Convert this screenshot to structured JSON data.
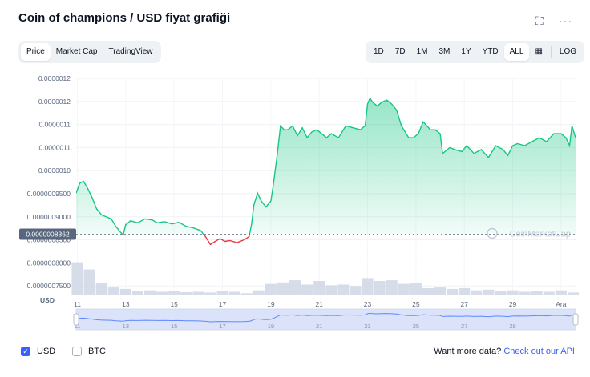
{
  "header": {
    "title": "Coin of champions / USD fiyat grafiği",
    "fullscreen_icon": "expand-icon",
    "more_icon": "more-icon",
    "fullscreen_glyph": "⛶",
    "more_glyph": "···"
  },
  "view_tabs": [
    {
      "label": "Price",
      "active": true
    },
    {
      "label": "Market Cap",
      "active": false
    },
    {
      "label": "TradingView",
      "active": false
    }
  ],
  "range_tabs": [
    {
      "label": "1D",
      "active": false
    },
    {
      "label": "7D",
      "active": false
    },
    {
      "label": "1M",
      "active": false
    },
    {
      "label": "3M",
      "active": false
    },
    {
      "label": "1Y",
      "active": false
    },
    {
      "label": "YTD",
      "active": false
    },
    {
      "label": "ALL",
      "active": true
    }
  ],
  "calendar_icon": "calendar-icon",
  "calendar_glyph": "▦",
  "log_label": "LOG",
  "watermark": "CoinMarketCap",
  "volume_axis_label": "USD",
  "colors": {
    "up": "#16c784",
    "down": "#ea3943",
    "volume": "#cfd6e4",
    "navigator_line": "#6188ff",
    "navigator_fill": "#dbe3fb",
    "accent": "#3861fb"
  },
  "chart_data": {
    "type": "line",
    "y_tick_labels": [
      "0.0000012",
      "0.0000012",
      "0.0000011",
      "0.0000011",
      "0.0000010",
      "0.0000009500",
      "0.0000009000",
      "0.0000008500",
      "0.0000008000",
      "0.0000007500"
    ],
    "ylim": [
      7.4e-07,
      1.23e-06
    ],
    "x_tick_labels": [
      "11",
      "13",
      "15",
      "17",
      "19",
      "21",
      "23",
      "25",
      "27",
      "29",
      "Ara"
    ],
    "x_tick_days": [
      11,
      13,
      15,
      17,
      19,
      21,
      23,
      25,
      27,
      29,
      31
    ],
    "x_range": [
      10.95,
      31.6
    ],
    "reference_price": 8.362e-07,
    "reference_label": "0.0000008362",
    "price_series": {
      "day": [
        10.95,
        11.1,
        11.25,
        11.4,
        11.6,
        11.8,
        12.0,
        12.2,
        12.4,
        12.6,
        12.8,
        12.9,
        13.0,
        13.2,
        13.5,
        13.8,
        14.1,
        14.3,
        14.6,
        14.9,
        15.2,
        15.5,
        15.8,
        16.1,
        16.3,
        16.5,
        16.7,
        16.9,
        17.1,
        17.3,
        17.6,
        17.9,
        18.1,
        18.2,
        18.3,
        18.45,
        18.6,
        18.8,
        19.0,
        19.1,
        19.25,
        19.4,
        19.55,
        19.7,
        19.9,
        20.1,
        20.3,
        20.5,
        20.7,
        20.9,
        21.1,
        21.3,
        21.5,
        21.8,
        22.1,
        22.4,
        22.7,
        22.9,
        23.0,
        23.1,
        23.2,
        23.4,
        23.6,
        23.8,
        24.0,
        24.2,
        24.4,
        24.7,
        24.9,
        25.1,
        25.3,
        25.6,
        25.8,
        26.0,
        26.1,
        26.2,
        26.4,
        26.6,
        26.9,
        27.1,
        27.4,
        27.7,
        28.0,
        28.3,
        28.6,
        28.8,
        29.0,
        29.2,
        29.5,
        29.8,
        30.1,
        30.4,
        30.7,
        31.0,
        31.2,
        31.35,
        31.45,
        31.6
      ],
      "price": [
        9.4e-07,
        9.65e-07,
        9.7e-07,
        9.55e-07,
        9.3e-07,
        9e-07,
        8.85e-07,
        8.8e-07,
        8.75e-07,
        8.55e-07,
        8.4e-07,
        8.35e-07,
        8.6e-07,
        8.7e-07,
        8.65e-07,
        8.75e-07,
        8.72e-07,
        8.65e-07,
        8.68e-07,
        8.62e-07,
        8.66e-07,
        8.56e-07,
        8.52e-07,
        8.45e-07,
        8.3e-07,
        8.1e-07,
        8.18e-07,
        8.25e-07,
        8.18e-07,
        8.2e-07,
        8.15e-07,
        8.22e-07,
        8.3e-07,
        8.6e-07,
        9.1e-07,
        9.4e-07,
        9.2e-07,
        9.05e-07,
        9.2e-07,
        9.6e-07,
        1.03e-06,
        1.11e-06,
        1.1e-06,
        1.1e-06,
        1.11e-06,
        1.085e-06,
        1.105e-06,
        1.08e-06,
        1.095e-06,
        1.1e-06,
        1.09e-06,
        1.08e-06,
        1.09e-06,
        1.08e-06,
        1.11e-06,
        1.105e-06,
        1.1e-06,
        1.11e-06,
        1.165e-06,
        1.18e-06,
        1.17e-06,
        1.16e-06,
        1.17e-06,
        1.175e-06,
        1.165e-06,
        1.15e-06,
        1.11e-06,
        1.08e-06,
        1.08e-06,
        1.09e-06,
        1.12e-06,
        1.1e-06,
        1.1e-06,
        1.09e-06,
        1.04e-06,
        1.045e-06,
        1.055e-06,
        1.05e-06,
        1.045e-06,
        1.06e-06,
        1.04e-06,
        1.05e-06,
        1.03e-06,
        1.06e-06,
        1.05e-06,
        1.035e-06,
        1.06e-06,
        1.065e-06,
        1.06e-06,
        1.07e-06,
        1.08e-06,
        1.07e-06,
        1.09e-06,
        1.09e-06,
        1.08e-06,
        1.06e-06,
        1.11e-06,
        1.08e-06
      ]
    },
    "volume_series": {
      "day": [
        11.0,
        11.5,
        12.0,
        12.5,
        13.0,
        13.5,
        14.0,
        14.5,
        15.0,
        15.5,
        16.0,
        16.5,
        17.0,
        17.5,
        18.0,
        18.5,
        19.0,
        19.5,
        20.0,
        20.5,
        21.0,
        21.5,
        22.0,
        22.5,
        23.0,
        23.5,
        24.0,
        24.5,
        25.0,
        25.5,
        26.0,
        26.5,
        27.0,
        27.5,
        28.0,
        28.5,
        29.0,
        29.5,
        30.0,
        30.5,
        31.0,
        31.5
      ],
      "relative": [
        0.92,
        0.72,
        0.35,
        0.22,
        0.18,
        0.12,
        0.14,
        0.1,
        0.12,
        0.09,
        0.1,
        0.08,
        0.12,
        0.1,
        0.06,
        0.14,
        0.32,
        0.36,
        0.42,
        0.3,
        0.4,
        0.28,
        0.3,
        0.26,
        0.48,
        0.4,
        0.42,
        0.32,
        0.34,
        0.2,
        0.22,
        0.18,
        0.2,
        0.14,
        0.16,
        0.12,
        0.14,
        0.1,
        0.12,
        0.1,
        0.14,
        0.08
      ]
    },
    "navigator_x_tick_labels": [
      "11",
      "13",
      "15",
      "17",
      "19",
      "21",
      "23",
      "25",
      "27",
      "29"
    ],
    "grid": true
  },
  "footer": {
    "options": [
      {
        "label": "USD",
        "checked": true
      },
      {
        "label": "BTC",
        "checked": false
      }
    ],
    "check_glyph": "✓",
    "more_prefix": "Want more data?",
    "more_link": "Check out our API"
  }
}
